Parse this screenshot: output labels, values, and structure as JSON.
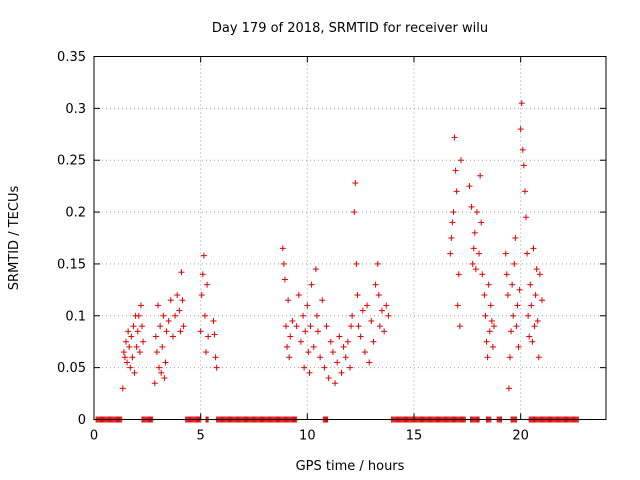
{
  "chart_data": {
    "type": "scatter",
    "title": "Day 179 of 2018, SRMTID for receiver wilu",
    "xlabel": "GPS time / hours",
    "ylabel": "SRMTID / TECUs",
    "xlim": [
      0,
      24
    ],
    "ylim": [
      0,
      0.35
    ],
    "x_ticks": [
      0,
      5,
      10,
      15,
      20
    ],
    "x_tick_labels": [
      "0",
      "5",
      "10",
      "15",
      "20"
    ],
    "y_ticks": [
      0,
      0.05,
      0.1,
      0.15,
      0.2,
      0.25,
      0.3,
      0.35
    ],
    "y_tick_labels": [
      "0",
      "0.05",
      "0.1",
      "0.15",
      "0.2",
      "0.25",
      "0.3",
      "0.35"
    ],
    "grid": true,
    "marker": "+",
    "color": "#e00000",
    "series": [
      {
        "name": "SRMTID",
        "points": [
          [
            1.35,
            0.03
          ],
          [
            1.4,
            0.065
          ],
          [
            1.45,
            0.06
          ],
          [
            1.5,
            0.075
          ],
          [
            1.55,
            0.055
          ],
          [
            1.6,
            0.085
          ],
          [
            1.65,
            0.07
          ],
          [
            1.7,
            0.05
          ],
          [
            1.75,
            0.08
          ],
          [
            1.8,
            0.06
          ],
          [
            1.85,
            0.09
          ],
          [
            1.9,
            0.045
          ],
          [
            1.95,
            0.1
          ],
          [
            2.0,
            0.07
          ],
          [
            2.05,
            0.085
          ],
          [
            2.1,
            0.1
          ],
          [
            2.15,
            0.065
          ],
          [
            2.2,
            0.11
          ],
          [
            2.25,
            0.09
          ],
          [
            2.3,
            0.075
          ],
          [
            2.85,
            0.035
          ],
          [
            2.9,
            0.08
          ],
          [
            2.95,
            0.065
          ],
          [
            3.0,
            0.11
          ],
          [
            3.05,
            0.05
          ],
          [
            3.1,
            0.09
          ],
          [
            3.15,
            0.045
          ],
          [
            3.2,
            0.07
          ],
          [
            3.25,
            0.1
          ],
          [
            3.3,
            0.04
          ],
          [
            3.35,
            0.055
          ],
          [
            3.4,
            0.085
          ],
          [
            3.5,
            0.095
          ],
          [
            3.6,
            0.115
          ],
          [
            3.7,
            0.08
          ],
          [
            3.8,
            0.1
          ],
          [
            3.9,
            0.12
          ],
          [
            4.0,
            0.105
          ],
          [
            4.05,
            0.085
          ],
          [
            4.1,
            0.142
          ],
          [
            4.15,
            0.115
          ],
          [
            4.2,
            0.09
          ],
          [
            5.0,
            0.085
          ],
          [
            5.05,
            0.12
          ],
          [
            5.1,
            0.14
          ],
          [
            5.15,
            0.158
          ],
          [
            5.2,
            0.1
          ],
          [
            5.25,
            0.065
          ],
          [
            5.3,
            0.13
          ],
          [
            5.35,
            0.08
          ],
          [
            5.6,
            0.095
          ],
          [
            5.65,
            0.082
          ],
          [
            5.7,
            0.06
          ],
          [
            5.75,
            0.05
          ],
          [
            8.85,
            0.165
          ],
          [
            8.9,
            0.15
          ],
          [
            8.95,
            0.135
          ],
          [
            9.0,
            0.09
          ],
          [
            9.05,
            0.07
          ],
          [
            9.1,
            0.115
          ],
          [
            9.15,
            0.06
          ],
          [
            9.2,
            0.08
          ],
          [
            9.3,
            0.095
          ],
          [
            9.5,
            0.09
          ],
          [
            9.6,
            0.12
          ],
          [
            9.7,
            0.075
          ],
          [
            9.8,
            0.1
          ],
          [
            9.85,
            0.05
          ],
          [
            9.9,
            0.085
          ],
          [
            10.0,
            0.11
          ],
          [
            10.05,
            0.065
          ],
          [
            10.1,
            0.045
          ],
          [
            10.15,
            0.09
          ],
          [
            10.2,
            0.13
          ],
          [
            10.3,
            0.07
          ],
          [
            10.4,
            0.145
          ],
          [
            10.45,
            0.1
          ],
          [
            10.5,
            0.085
          ],
          [
            10.6,
            0.06
          ],
          [
            10.7,
            0.115
          ],
          [
            10.8,
            0.05
          ],
          [
            10.9,
            0.09
          ],
          [
            11.0,
            0.04
          ],
          [
            11.1,
            0.075
          ],
          [
            11.2,
            0.065
          ],
          [
            11.3,
            0.035
          ],
          [
            11.4,
            0.055
          ],
          [
            11.5,
            0.08
          ],
          [
            11.6,
            0.045
          ],
          [
            11.7,
            0.07
          ],
          [
            11.8,
            0.06
          ],
          [
            11.9,
            0.075
          ],
          [
            12.0,
            0.05
          ],
          [
            12.05,
            0.09
          ],
          [
            12.1,
            0.1
          ],
          [
            12.2,
            0.2
          ],
          [
            12.25,
            0.228
          ],
          [
            12.3,
            0.15
          ],
          [
            12.35,
            0.12
          ],
          [
            12.4,
            0.09
          ],
          [
            12.5,
            0.08
          ],
          [
            12.6,
            0.105
          ],
          [
            12.7,
            0.065
          ],
          [
            12.8,
            0.11
          ],
          [
            12.9,
            0.055
          ],
          [
            13.0,
            0.095
          ],
          [
            13.1,
            0.075
          ],
          [
            13.2,
            0.13
          ],
          [
            13.3,
            0.15
          ],
          [
            13.35,
            0.12
          ],
          [
            13.4,
            0.09
          ],
          [
            13.5,
            0.105
          ],
          [
            13.6,
            0.085
          ],
          [
            13.7,
            0.11
          ],
          [
            13.8,
            0.1
          ],
          [
            16.7,
            0.16
          ],
          [
            16.75,
            0.175
          ],
          [
            16.8,
            0.19
          ],
          [
            16.85,
            0.2
          ],
          [
            16.9,
            0.272
          ],
          [
            16.95,
            0.24
          ],
          [
            17.0,
            0.22
          ],
          [
            17.05,
            0.11
          ],
          [
            17.1,
            0.14
          ],
          [
            17.15,
            0.09
          ],
          [
            17.2,
            0.25
          ],
          [
            17.6,
            0.225
          ],
          [
            17.7,
            0.205
          ],
          [
            17.75,
            0.15
          ],
          [
            17.8,
            0.165
          ],
          [
            17.85,
            0.18
          ],
          [
            17.9,
            0.145
          ],
          [
            17.95,
            0.2
          ],
          [
            18.05,
            0.16
          ],
          [
            18.1,
            0.235
          ],
          [
            18.15,
            0.19
          ],
          [
            18.2,
            0.14
          ],
          [
            18.3,
            0.12
          ],
          [
            18.35,
            0.1
          ],
          [
            18.4,
            0.075
          ],
          [
            18.45,
            0.06
          ],
          [
            18.5,
            0.13
          ],
          [
            18.55,
            0.085
          ],
          [
            18.6,
            0.11
          ],
          [
            18.65,
            0.095
          ],
          [
            18.7,
            0.07
          ],
          [
            18.75,
            0.09
          ],
          [
            19.3,
            0.16
          ],
          [
            19.35,
            0.14
          ],
          [
            19.4,
            0.12
          ],
          [
            19.45,
            0.03
          ],
          [
            19.5,
            0.06
          ],
          [
            19.55,
            0.085
          ],
          [
            19.6,
            0.13
          ],
          [
            19.65,
            0.1
          ],
          [
            19.7,
            0.15
          ],
          [
            19.75,
            0.175
          ],
          [
            19.8,
            0.09
          ],
          [
            19.85,
            0.11
          ],
          [
            19.9,
            0.07
          ],
          [
            19.95,
            0.125
          ],
          [
            20.0,
            0.28
          ],
          [
            20.05,
            0.305
          ],
          [
            20.1,
            0.26
          ],
          [
            20.15,
            0.245
          ],
          [
            20.2,
            0.22
          ],
          [
            20.25,
            0.195
          ],
          [
            20.3,
            0.16
          ],
          [
            20.35,
            0.1
          ],
          [
            20.4,
            0.08
          ],
          [
            20.45,
            0.13
          ],
          [
            20.5,
            0.11
          ],
          [
            20.55,
            0.075
          ],
          [
            20.6,
            0.165
          ],
          [
            20.65,
            0.09
          ],
          [
            20.7,
            0.12
          ],
          [
            20.75,
            0.145
          ],
          [
            20.8,
            0.095
          ],
          [
            20.85,
            0.06
          ],
          [
            20.9,
            0.14
          ],
          [
            21.0,
            0.115
          ]
        ],
        "zero_segments": [
          [
            0.1,
            1.3
          ],
          [
            2.25,
            2.75
          ],
          [
            4.3,
            5.0
          ],
          [
            5.25,
            5.35
          ],
          [
            5.75,
            9.5
          ],
          [
            10.75,
            10.95
          ],
          [
            13.95,
            17.4
          ],
          [
            17.65,
            18.05
          ],
          [
            18.4,
            18.6
          ],
          [
            18.9,
            19.1
          ],
          [
            19.55,
            19.8
          ],
          [
            20.4,
            22.7
          ]
        ]
      }
    ]
  }
}
